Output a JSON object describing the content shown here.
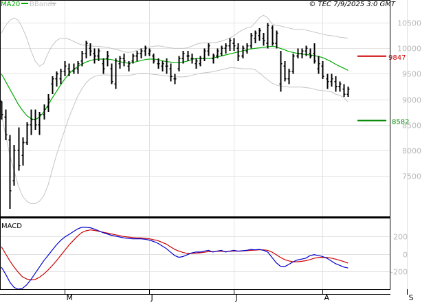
{
  "header": {
    "legend_ma": "MA20",
    "legend_bb": "BBands",
    "copyright": "© TEC 7/9/2025 3:0 GMT"
  },
  "colors": {
    "ma20": "#00aa00",
    "bbands": "#c4c4c4",
    "bars": "#000000",
    "resistance": "#cc0000",
    "support": "#008800",
    "macd_line": "#0000cc",
    "signal_line": "#cc0000",
    "grid": "#e2e2e2",
    "tick_text": "#b8b8b8"
  },
  "chart_data": [
    {
      "type": "line",
      "title": "",
      "ylim": [
        6700,
        10950
      ],
      "y_ticks": [
        7500,
        8000,
        8500,
        9000,
        9500,
        10000,
        10500
      ],
      "x_tick_labels": [
        "M",
        "J",
        "J",
        "A",
        "S"
      ],
      "x_tick_index": [
        15,
        35,
        55,
        76,
        96
      ],
      "levels": [
        {
          "name": "9847",
          "value": 9847,
          "color": "#cc0000"
        },
        {
          "name": "8582",
          "value": 8582,
          "color": "#008800"
        }
      ],
      "ohlc": [
        [
          8960,
          8960,
          8600,
          8700
        ],
        [
          8650,
          8800,
          8200,
          8300
        ],
        [
          8200,
          8300,
          6850,
          7200
        ],
        [
          7400,
          8100,
          7300,
          8000
        ],
        [
          8000,
          8450,
          7600,
          7700
        ],
        [
          7900,
          8250,
          7700,
          8150
        ],
        [
          8150,
          8550,
          8100,
          8500
        ],
        [
          8500,
          8800,
          8300,
          8600
        ],
        [
          8600,
          8800,
          8400,
          8500
        ],
        [
          8500,
          8750,
          8300,
          8700
        ],
        [
          8700,
          8900,
          8600,
          8800
        ],
        [
          8850,
          9100,
          8750,
          9000
        ],
        [
          9300,
          9450,
          9100,
          9400
        ],
        [
          9400,
          9550,
          9250,
          9500
        ],
        [
          9400,
          9600,
          9300,
          9550
        ],
        [
          9550,
          9750,
          9450,
          9650
        ],
        [
          9600,
          9700,
          9450,
          9550
        ],
        [
          9550,
          9700,
          9500,
          9600
        ],
        [
          9600,
          9750,
          9500,
          9700
        ],
        [
          9750,
          9950,
          9650,
          9900
        ],
        [
          9900,
          10150,
          9800,
          10100
        ],
        [
          10000,
          10100,
          9850,
          9950
        ],
        [
          9900,
          10000,
          9700,
          9850
        ],
        [
          9850,
          10000,
          9750,
          9950
        ],
        [
          9700,
          9800,
          9500,
          9600
        ],
        [
          9800,
          9950,
          9650,
          9850
        ],
        [
          9600,
          9700,
          9300,
          9350
        ],
        [
          9300,
          9800,
          9200,
          9750
        ],
        [
          9700,
          9850,
          9600,
          9800
        ],
        [
          9800,
          9900,
          9650,
          9750
        ],
        [
          9650,
          9750,
          9550,
          9700
        ],
        [
          9750,
          9900,
          9700,
          9850
        ],
        [
          9850,
          9950,
          9750,
          9900
        ],
        [
          9900,
          10000,
          9800,
          9950
        ],
        [
          9950,
          10050,
          9850,
          10000
        ],
        [
          9900,
          10000,
          9850,
          9950
        ],
        [
          9850,
          9900,
          9700,
          9750
        ],
        [
          9700,
          9800,
          9600,
          9700
        ],
        [
          9650,
          9750,
          9550,
          9700
        ],
        [
          9650,
          9800,
          9500,
          9650
        ],
        [
          9600,
          9700,
          9350,
          9450
        ],
        [
          9400,
          9500,
          9300,
          9400
        ],
        [
          9600,
          9850,
          9550,
          9800
        ],
        [
          9800,
          9950,
          9700,
          9900
        ],
        [
          9850,
          9950,
          9750,
          9850
        ],
        [
          9800,
          9900,
          9700,
          9800
        ],
        [
          9700,
          9800,
          9600,
          9750
        ],
        [
          9700,
          9850,
          9650,
          9800
        ],
        [
          9800,
          10000,
          9750,
          9950
        ],
        [
          9950,
          10100,
          9850,
          10050
        ],
        [
          9800,
          9900,
          9700,
          9850
        ],
        [
          9850,
          10000,
          9800,
          9950
        ],
        [
          9900,
          10050,
          9850,
          10000
        ],
        [
          10000,
          10100,
          9900,
          10050
        ],
        [
          10050,
          10200,
          9950,
          10150
        ],
        [
          10100,
          10200,
          9950,
          10050
        ],
        [
          10000,
          10100,
          9750,
          9850
        ],
        [
          9850,
          10050,
          9800,
          10000
        ],
        [
          9950,
          10100,
          9900,
          10050
        ],
        [
          10050,
          10300,
          10000,
          10250
        ],
        [
          10200,
          10350,
          10100,
          10300
        ],
        [
          10250,
          10400,
          10150,
          10350
        ],
        [
          10200,
          10300,
          10050,
          10150
        ],
        [
          10100,
          10500,
          10000,
          10450
        ],
        [
          10400,
          10450,
          10050,
          10100
        ],
        [
          10100,
          10350,
          10000,
          10300
        ],
        [
          9300,
          9950,
          9150,
          9700
        ],
        [
          9650,
          9750,
          9350,
          9400
        ],
        [
          9400,
          9600,
          9300,
          9550
        ],
        [
          9550,
          9900,
          9500,
          9850
        ],
        [
          9850,
          10000,
          9800,
          9900
        ],
        [
          9900,
          10000,
          9800,
          9950
        ],
        [
          9950,
          10050,
          9850,
          10000
        ],
        [
          9900,
          10000,
          9800,
          9850
        ],
        [
          9900,
          10100,
          9700,
          9750
        ],
        [
          9600,
          9850,
          9500,
          9700
        ],
        [
          9650,
          9750,
          9400,
          9450
        ],
        [
          9400,
          9500,
          9200,
          9350
        ],
        [
          9350,
          9500,
          9250,
          9400
        ],
        [
          9350,
          9450,
          9150,
          9250
        ],
        [
          9250,
          9350,
          9150,
          9300
        ],
        [
          9200,
          9300,
          9050,
          9100
        ],
        [
          9100,
          9250,
          9050,
          9200
        ]
      ],
      "ma20": [
        9500,
        9350,
        9200,
        9050,
        8900,
        8780,
        8680,
        8620,
        8600,
        8650,
        8750,
        8880,
        9020,
        9150,
        9280,
        9400,
        9500,
        9580,
        9640,
        9690,
        9730,
        9760,
        9780,
        9790,
        9790,
        9790,
        9780,
        9760,
        9740,
        9720,
        9710,
        9720,
        9740,
        9760,
        9780,
        9790,
        9790,
        9780,
        9760,
        9740,
        9730,
        9720,
        9720,
        9730,
        9750,
        9780,
        9800,
        9800,
        9800,
        9800,
        9810,
        9830,
        9850,
        9870,
        9890,
        9910,
        9930,
        9950,
        9970,
        9990,
        10000,
        10010,
        10020,
        10030,
        10040,
        10030,
        10000,
        9970,
        9940,
        9920,
        9900,
        9890,
        9880,
        9870,
        9860,
        9840,
        9820,
        9780,
        9740,
        9690,
        9650,
        9610,
        9570
      ],
      "bb_upper": [
        10300,
        10450,
        10550,
        10600,
        10550,
        10400,
        10200,
        9950,
        9750,
        9650,
        9700,
        9900,
        10050,
        10150,
        10200,
        10200,
        10180,
        10140,
        10100,
        10070,
        10060,
        10050,
        10040,
        10040,
        10030,
        10020,
        10000,
        9980,
        9960,
        9930,
        9920,
        9930,
        9960,
        9990,
        10010,
        10030,
        10040,
        10050,
        10040,
        10020,
        10010,
        10000,
        10000,
        10000,
        10010,
        10040,
        10080,
        10100,
        10110,
        10110,
        10110,
        10120,
        10140,
        10170,
        10200,
        10250,
        10310,
        10360,
        10400,
        10420,
        10500,
        10600,
        10650,
        10600,
        10480,
        10450,
        10440,
        10420,
        10400,
        10380,
        10370,
        10380,
        10360,
        10340,
        10320,
        10300,
        10280,
        10260,
        10250,
        10240,
        10220,
        10210,
        10200
      ],
      "bb_lower": [
        8700,
        8300,
        7900,
        7600,
        7300,
        7100,
        7000,
        6950,
        6950,
        7000,
        7100,
        7300,
        7600,
        7900,
        8150,
        8400,
        8650,
        8850,
        9050,
        9200,
        9320,
        9400,
        9450,
        9470,
        9480,
        9480,
        9470,
        9460,
        9460,
        9460,
        9470,
        9480,
        9500,
        9510,
        9510,
        9500,
        9490,
        9480,
        9470,
        9460,
        9450,
        9440,
        9440,
        9440,
        9450,
        9470,
        9490,
        9510,
        9520,
        9530,
        9540,
        9560,
        9580,
        9600,
        9620,
        9620,
        9610,
        9600,
        9600,
        9600,
        9580,
        9520,
        9450,
        9380,
        9320,
        9280,
        9260,
        9250,
        9240,
        9240,
        9240,
        9240,
        9230,
        9220,
        9200,
        9180,
        9170,
        9160,
        9150,
        9100,
        9080,
        9030,
        8950
      ]
    },
    {
      "type": "line",
      "title": "MACD",
      "ylim": [
        -400,
        400
      ],
      "y_ticks": [
        -200,
        0,
        200
      ],
      "y_tick_labels": [
        "-200",
        "0",
        "200"
      ],
      "series": [
        {
          "name": "",
          "color": "#0000cc",
          "values": [
            -150,
            -230,
            -320,
            -380,
            -400,
            -390,
            -350,
            -290,
            -220,
            -150,
            -80,
            -20,
            40,
            100,
            150,
            190,
            220,
            250,
            280,
            300,
            300,
            295,
            280,
            260,
            240,
            225,
            210,
            200,
            190,
            180,
            175,
            170,
            170,
            170,
            165,
            155,
            140,
            120,
            90,
            60,
            20,
            -20,
            -40,
            -30,
            -10,
            10,
            20,
            20,
            30,
            40,
            20,
            30,
            40,
            20,
            30,
            40,
            30,
            35,
            40,
            50,
            45,
            50,
            40,
            20,
            -40,
            -100,
            -140,
            -145,
            -120,
            -90,
            -70,
            -60,
            -50,
            -20,
            -10,
            -20,
            -30,
            -50,
            -80,
            -110,
            -130,
            -150,
            -160
          ]
        },
        {
          "name": "",
          "color": "#cc0000",
          "values": [
            80,
            0,
            -80,
            -150,
            -210,
            -260,
            -285,
            -295,
            -290,
            -265,
            -230,
            -185,
            -135,
            -80,
            -20,
            40,
            100,
            150,
            200,
            240,
            260,
            270,
            265,
            255,
            245,
            235,
            225,
            215,
            205,
            195,
            190,
            185,
            180,
            180,
            175,
            170,
            160,
            150,
            130,
            110,
            80,
            50,
            30,
            15,
            5,
            5,
            8,
            12,
            18,
            25,
            25,
            28,
            30,
            25,
            28,
            32,
            30,
            32,
            35,
            40,
            42,
            45,
            45,
            40,
            20,
            -10,
            -40,
            -65,
            -80,
            -90,
            -90,
            -85,
            -78,
            -65,
            -50,
            -42,
            -40,
            -42,
            -48,
            -60,
            -72,
            -88,
            -105
          ]
        }
      ]
    }
  ]
}
